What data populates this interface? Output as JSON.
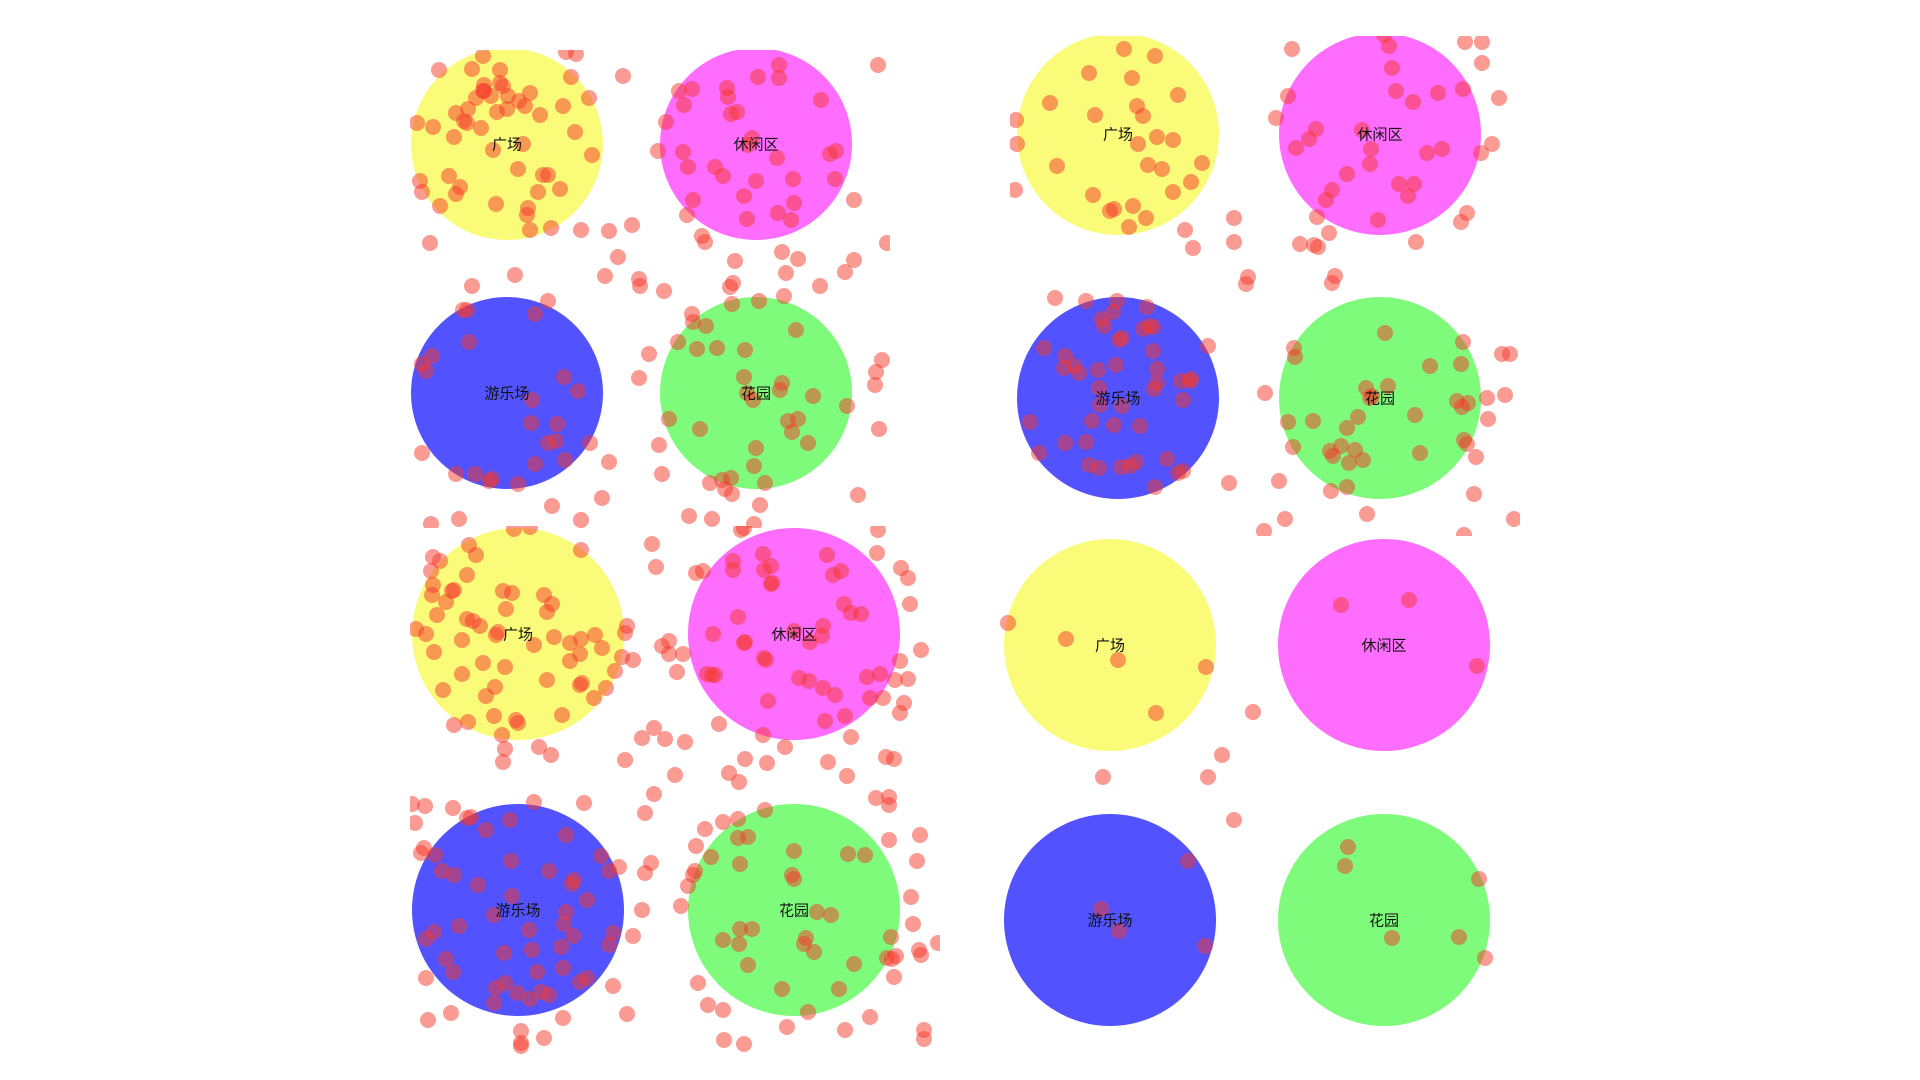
{
  "zone_labels": {
    "plaza": "广场",
    "lounge": "休闲区",
    "playground": "游乐场",
    "garden": "花园"
  },
  "colors": {
    "plaza": "#fbfb7a",
    "lounge": "#ff6dff",
    "playground": "#5252ff",
    "garden": "#7efb7a",
    "person_dot": "#f6382a"
  }
}
